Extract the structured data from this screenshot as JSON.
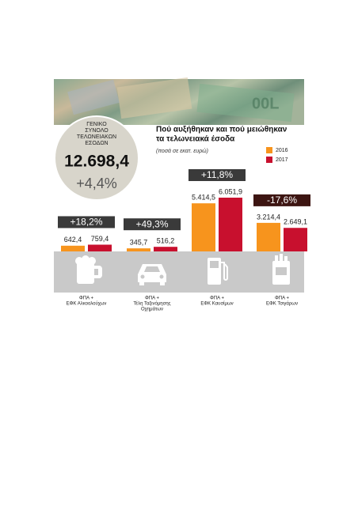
{
  "chart_data": {
    "type": "bar",
    "title": [
      "Πού αυξήθηκαν και πού μειώθηκαν",
      "τα τελωνειακά έσοδα"
    ],
    "subtitle": "(ποσά σε εκατ. ευρώ)",
    "total": {
      "title": [
        "ΓΕΝΙΚΟ",
        "ΣΥΝΟΛΟ",
        "ΤΕΛΩΝΕΙΑΚΩΝ",
        "ΕΣΟΔΩΝ"
      ],
      "value": 12698.4,
      "value_label": "12.698,4",
      "change": 4.4,
      "change_label": "+4,4%"
    },
    "categories": [
      [
        "ΦΠΑ +",
        "ΕΦΚ Αλκοολούχων"
      ],
      [
        "ΦΠΑ +",
        "Τέλη Ταξινόμησης",
        "Οχημάτων"
      ],
      [
        "ΦΠΑ +",
        "ΕΦΚ Καυσίμων"
      ],
      [
        "ΦΠΑ +",
        "ΕΦΚ Τσιγάρων"
      ]
    ],
    "changes": [
      18.2,
      49.3,
      11.8,
      -17.6
    ],
    "change_labels": [
      "+18,2%",
      "+49,3%",
      "+11,8%",
      "-17,6%"
    ],
    "series": [
      {
        "name": "2016",
        "color": "#f7941d",
        "values": [
          642.4,
          345.7,
          5414.5,
          3214.4
        ],
        "value_labels": [
          "642,4",
          "345,7",
          "5.414,5",
          "3.214,4"
        ]
      },
      {
        "name": "2017",
        "color": "#c8102e",
        "values": [
          759.4,
          516.2,
          6051.9,
          2649.1
        ],
        "value_labels": [
          "759,4",
          "516,2",
          "6.051,9",
          "2.649,1"
        ]
      }
    ]
  }
}
